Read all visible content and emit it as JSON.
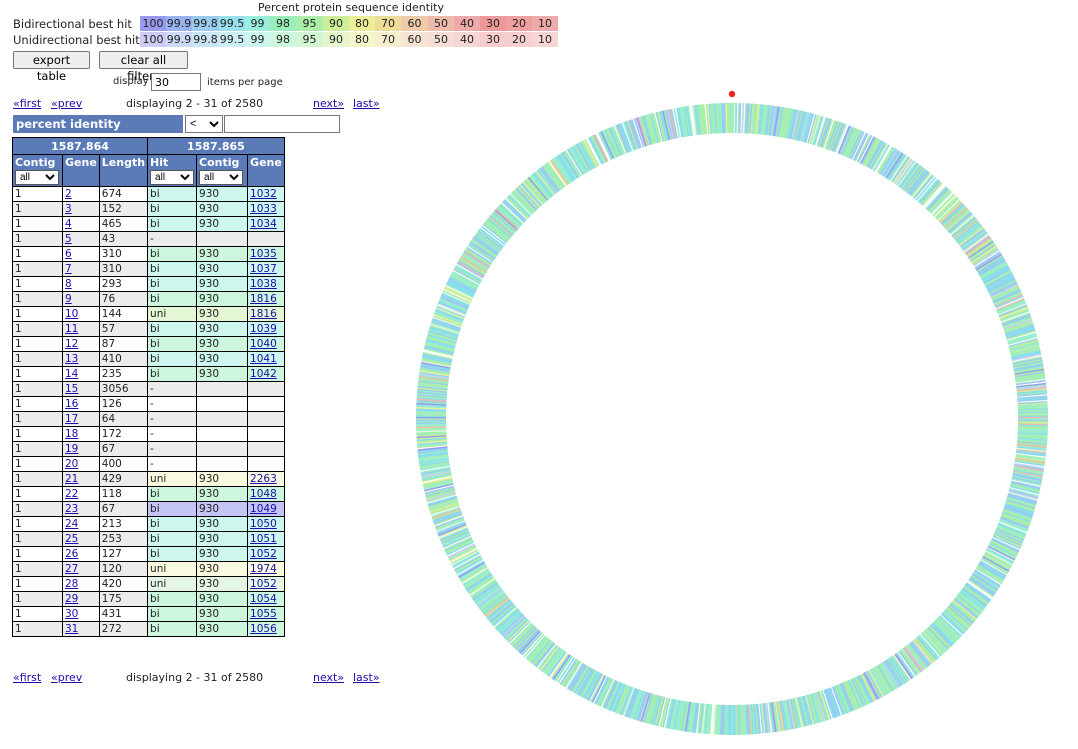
{
  "legend": {
    "title": "Percent protein sequence identity",
    "values": [
      "100",
      "99.9",
      "99.8",
      "99.5",
      "99",
      "98",
      "95",
      "90",
      "80",
      "70",
      "60",
      "50",
      "40",
      "30",
      "20",
      "10"
    ],
    "widths": [
      26,
      26,
      27,
      26,
      25,
      26,
      27,
      26,
      26,
      26,
      27,
      26,
      26,
      26,
      26,
      26
    ],
    "bi_label": "Bidirectional best hit",
    "uni_label": "Unidirectional best hit",
    "bi_colors": [
      "#9999ee",
      "#99b3f0",
      "#99ccee",
      "#99e0ee",
      "#99eedd",
      "#99eebb",
      "#aaeeaa",
      "#ccee99",
      "#eeee99",
      "#eedd99",
      "#eeccaa",
      "#eebbaa",
      "#eeaaaa",
      "#ee9999",
      "#eea0a0",
      "#eeaaaa"
    ],
    "uni_colors": [
      "#ccccf6",
      "#ccd9f7",
      "#cce5f6",
      "#ccf0f6",
      "#ccf6ee",
      "#ccf6dd",
      "#d5f6d5",
      "#e5f6cc",
      "#f6f6cc",
      "#f6eecc",
      "#f6e5d5",
      "#f6ddd5",
      "#f6d5d5",
      "#f6cccc",
      "#f6d0d0",
      "#f6d5d5"
    ]
  },
  "toolbar": {
    "export_label": "export table",
    "clear_label": "clear all filters"
  },
  "display": {
    "label": "display",
    "value": "30",
    "suffix": "items per page"
  },
  "pager": {
    "first": "«first",
    "prev": "«prev",
    "status": "displaying 2 - 31 of 2580",
    "next": "next»",
    "last": "last»"
  },
  "filter": {
    "label": "percent identity 1587.865",
    "operator": "<",
    "value": ""
  },
  "table": {
    "group_left": "1587.864",
    "group_right": "1587.865",
    "headers": {
      "contig": "Contig",
      "gene": "Gene",
      "length": "Length",
      "hit": "Hit",
      "contig2": "Contig",
      "gene2": "Gene"
    },
    "filter_default": "all",
    "rows": [
      {
        "contig": "1",
        "gene": "2",
        "length": "674",
        "hit": "bi",
        "contig2": "930",
        "gene2": "1032",
        "color": "#ccf6ee"
      },
      {
        "contig": "1",
        "gene": "3",
        "length": "152",
        "hit": "bi",
        "contig2": "930",
        "gene2": "1033",
        "color": "#ccf6ee"
      },
      {
        "contig": "1",
        "gene": "4",
        "length": "465",
        "hit": "bi",
        "contig2": "930",
        "gene2": "1034",
        "color": "#ccf6ee"
      },
      {
        "contig": "1",
        "gene": "5",
        "length": "43",
        "hit": "-",
        "contig2": "",
        "gene2": "",
        "color": ""
      },
      {
        "contig": "1",
        "gene": "6",
        "length": "310",
        "hit": "bi",
        "contig2": "930",
        "gene2": "1035",
        "color": "#ccf6dd"
      },
      {
        "contig": "1",
        "gene": "7",
        "length": "310",
        "hit": "bi",
        "contig2": "930",
        "gene2": "1037",
        "color": "#ccf6ee"
      },
      {
        "contig": "1",
        "gene": "8",
        "length": "293",
        "hit": "bi",
        "contig2": "930",
        "gene2": "1038",
        "color": "#ccf6ee"
      },
      {
        "contig": "1",
        "gene": "9",
        "length": "76",
        "hit": "bi",
        "contig2": "930",
        "gene2": "1816",
        "color": "#ccf6dd"
      },
      {
        "contig": "1",
        "gene": "10",
        "length": "144",
        "hit": "uni",
        "contig2": "930",
        "gene2": "1816",
        "color": "#e5f6d5"
      },
      {
        "contig": "1",
        "gene": "11",
        "length": "57",
        "hit": "bi",
        "contig2": "930",
        "gene2": "1039",
        "color": "#ccf6ee"
      },
      {
        "contig": "1",
        "gene": "12",
        "length": "87",
        "hit": "bi",
        "contig2": "930",
        "gene2": "1040",
        "color": "#ccf6dd"
      },
      {
        "contig": "1",
        "gene": "13",
        "length": "410",
        "hit": "bi",
        "contig2": "930",
        "gene2": "1041",
        "color": "#ccf6ee"
      },
      {
        "contig": "1",
        "gene": "14",
        "length": "235",
        "hit": "bi",
        "contig2": "930",
        "gene2": "1042",
        "color": "#ccf6dd"
      },
      {
        "contig": "1",
        "gene": "15",
        "length": "3056",
        "hit": "-",
        "contig2": "",
        "gene2": "",
        "color": ""
      },
      {
        "contig": "1",
        "gene": "16",
        "length": "126",
        "hit": "-",
        "contig2": "",
        "gene2": "",
        "color": ""
      },
      {
        "contig": "1",
        "gene": "17",
        "length": "64",
        "hit": "-",
        "contig2": "",
        "gene2": "",
        "color": ""
      },
      {
        "contig": "1",
        "gene": "18",
        "length": "172",
        "hit": "-",
        "contig2": "",
        "gene2": "",
        "color": ""
      },
      {
        "contig": "1",
        "gene": "19",
        "length": "67",
        "hit": "-",
        "contig2": "",
        "gene2": "",
        "color": ""
      },
      {
        "contig": "1",
        "gene": "20",
        "length": "400",
        "hit": "-",
        "contig2": "",
        "gene2": "",
        "color": ""
      },
      {
        "contig": "1",
        "gene": "21",
        "length": "429",
        "hit": "uni",
        "contig2": "930",
        "gene2": "2263",
        "color": "#fafae0"
      },
      {
        "contig": "1",
        "gene": "22",
        "length": "118",
        "hit": "bi",
        "contig2": "930",
        "gene2": "1048",
        "color": "#ccf6dd"
      },
      {
        "contig": "1",
        "gene": "23",
        "length": "67",
        "hit": "bi",
        "contig2": "930",
        "gene2": "1049",
        "color": "#c4c4f4"
      },
      {
        "contig": "1",
        "gene": "24",
        "length": "213",
        "hit": "bi",
        "contig2": "930",
        "gene2": "1050",
        "color": "#ccf6ee"
      },
      {
        "contig": "1",
        "gene": "25",
        "length": "253",
        "hit": "bi",
        "contig2": "930",
        "gene2": "1051",
        "color": "#ccf6ee"
      },
      {
        "contig": "1",
        "gene": "26",
        "length": "127",
        "hit": "bi",
        "contig2": "930",
        "gene2": "1052",
        "color": "#ccf6ee"
      },
      {
        "contig": "1",
        "gene": "27",
        "length": "120",
        "hit": "uni",
        "contig2": "930",
        "gene2": "1974",
        "color": "#fafae0"
      },
      {
        "contig": "1",
        "gene": "28",
        "length": "420",
        "hit": "uni",
        "contig2": "930",
        "gene2": "1052",
        "color": "#e5f6e5"
      },
      {
        "contig": "1",
        "gene": "29",
        "length": "175",
        "hit": "bi",
        "contig2": "930",
        "gene2": "1054",
        "color": "#ccf6dd"
      },
      {
        "contig": "1",
        "gene": "30",
        "length": "431",
        "hit": "bi",
        "contig2": "930",
        "gene2": "1055",
        "color": "#ccf6dd"
      },
      {
        "contig": "1",
        "gene": "31",
        "length": "272",
        "hit": "bi",
        "contig2": "930",
        "gene2": "1056",
        "color": "#ccf6dd"
      }
    ]
  },
  "genome_plot": {
    "marker_color": "#ee2222",
    "palette": [
      "#88ddee",
      "#99eecc",
      "#aaeeaa",
      "#99ccee",
      "#9999ee",
      "#ccee99",
      "#eeee99",
      "#99eebb",
      "#eebbaa",
      "#ccccf6",
      "#e0f6e0"
    ]
  }
}
